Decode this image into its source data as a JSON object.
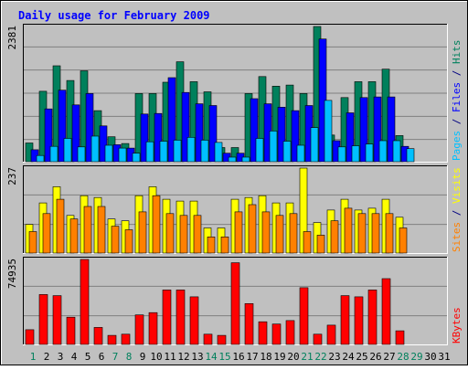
{
  "chart_data": [
    {
      "type": "bar",
      "title": "Daily usage for February 2009",
      "panel": "top",
      "ymax_label": "2381",
      "ylim": [
        0,
        2381
      ],
      "grid": true,
      "legend_right": [
        {
          "label": "Pages",
          "color": "#00c0ff"
        },
        {
          "label": " / ",
          "color": "#000080"
        },
        {
          "label": "Files",
          "color": "#0000ff"
        },
        {
          "label": " / ",
          "color": "#000080"
        },
        {
          "label": "Hits",
          "color": "#00805c"
        }
      ],
      "categories": [
        "1",
        "2",
        "3",
        "4",
        "5",
        "6",
        "7",
        "8",
        "9",
        "10",
        "11",
        "12",
        "13",
        "14",
        "15",
        "16",
        "17",
        "18",
        "19",
        "20",
        "21",
        "22",
        "23",
        "24",
        "25",
        "26",
        "27",
        "28",
        "29",
        "30",
        "31"
      ],
      "series": [
        {
          "name": "Hits",
          "color": "#00805c",
          "values": [
            330,
            1240,
            1690,
            1430,
            1600,
            900,
            440,
            320,
            1200,
            1200,
            1400,
            1760,
            1410,
            1230,
            250,
            250,
            1200,
            1500,
            1330,
            1350,
            1200,
            2381,
            470,
            1130,
            1410,
            1410,
            1630,
            460,
            0,
            0,
            0
          ]
        },
        {
          "name": "Files",
          "color": "#0000ff",
          "values": [
            210,
            930,
            1260,
            1000,
            1200,
            630,
            300,
            240,
            840,
            850,
            1480,
            1220,
            1020,
            990,
            150,
            150,
            1110,
            1020,
            960,
            900,
            990,
            2160,
            370,
            860,
            1130,
            1140,
            1140,
            270,
            0,
            0,
            0
          ]
        },
        {
          "name": "Pages",
          "color": "#00c0ff",
          "values": [
            110,
            270,
            410,
            260,
            450,
            290,
            240,
            150,
            350,
            360,
            380,
            430,
            380,
            340,
            80,
            80,
            410,
            540,
            360,
            290,
            600,
            1080,
            260,
            280,
            310,
            370,
            370,
            230,
            0,
            0,
            0
          ]
        }
      ]
    },
    {
      "type": "bar",
      "panel": "middle",
      "ymax_label": "237",
      "ylim": [
        0,
        237
      ],
      "grid": true,
      "legend_right": [
        {
          "label": "Sites",
          "color": "#ff8000"
        },
        {
          "label": " / ",
          "color": "#000080"
        },
        {
          "label": "Visits",
          "color": "#ffff00"
        }
      ],
      "categories": [
        "1",
        "2",
        "3",
        "4",
        "5",
        "6",
        "7",
        "8",
        "9",
        "10",
        "11",
        "12",
        "13",
        "14",
        "15",
        "16",
        "17",
        "18",
        "19",
        "20",
        "21",
        "22",
        "23",
        "24",
        "25",
        "26",
        "27",
        "28",
        "29",
        "30",
        "31"
      ],
      "series": [
        {
          "name": "Visits",
          "color": "#ffff00",
          "values": [
            80,
            140,
            185,
            105,
            160,
            155,
            95,
            90,
            160,
            185,
            150,
            145,
            145,
            70,
            70,
            150,
            155,
            160,
            140,
            140,
            237,
            85,
            120,
            150,
            120,
            125,
            150,
            100,
            0,
            0,
            0
          ]
        },
        {
          "name": "Sites",
          "color": "#ff8000",
          "values": [
            60,
            110,
            150,
            95,
            130,
            130,
            75,
            65,
            115,
            160,
            110,
            105,
            105,
            45,
            45,
            115,
            135,
            115,
            105,
            110,
            60,
            50,
            90,
            125,
            110,
            110,
            110,
            70,
            0,
            0,
            0
          ]
        }
      ]
    },
    {
      "type": "bar",
      "panel": "bottom",
      "ymax_label": "74935",
      "ylim": [
        0,
        74935
      ],
      "grid": true,
      "legend_right": [
        {
          "label": "KBytes",
          "color": "#ff0000"
        }
      ],
      "categories": [
        "1",
        "2",
        "3",
        "4",
        "5",
        "6",
        "7",
        "8",
        "9",
        "10",
        "11",
        "12",
        "13",
        "14",
        "15",
        "16",
        "17",
        "18",
        "19",
        "20",
        "21",
        "22",
        "23",
        "24",
        "25",
        "26",
        "27",
        "28",
        "29",
        "30",
        "31"
      ],
      "series": [
        {
          "name": "KBytes",
          "color": "#ff0000",
          "values": [
            13000,
            44000,
            43000,
            24000,
            74935,
            15000,
            8000,
            9000,
            26000,
            28000,
            48000,
            48000,
            42000,
            9000,
            8000,
            72000,
            36000,
            20000,
            18000,
            21000,
            50000,
            9000,
            17000,
            43000,
            42000,
            48000,
            58000,
            12000,
            0,
            0,
            0
          ]
        }
      ]
    }
  ],
  "x_labels": {
    "values": [
      "1",
      "2",
      "3",
      "4",
      "5",
      "6",
      "7",
      "8",
      "9",
      "10",
      "11",
      "12",
      "13",
      "14",
      "15",
      "16",
      "17",
      "18",
      "19",
      "20",
      "21",
      "22",
      "23",
      "24",
      "25",
      "26",
      "27",
      "28",
      "29",
      "30",
      "31"
    ],
    "weekend": [
      "1",
      "7",
      "8",
      "14",
      "15",
      "21",
      "22",
      "28",
      "29"
    ],
    "weekday_color": "#000000",
    "weekend_color": "#00805c"
  },
  "colors": {
    "frame_bg": "#c0c0c0",
    "panel_bg": "#c0c0c0",
    "grid": "#808080",
    "title": "#0000ff",
    "text": "#000000"
  }
}
